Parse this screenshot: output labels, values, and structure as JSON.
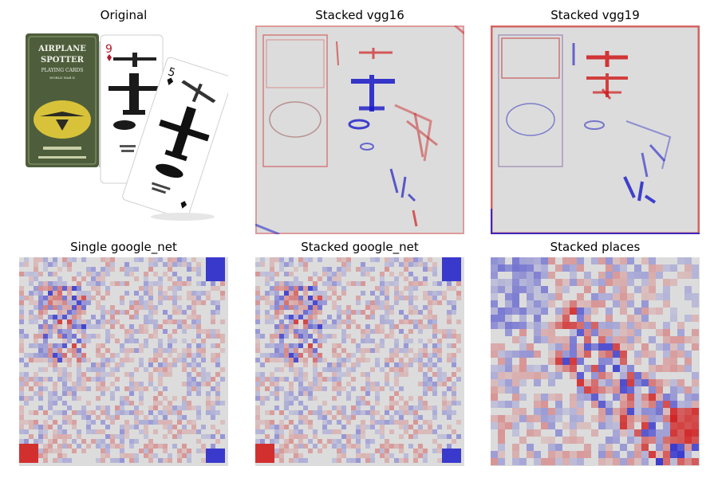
{
  "figure": {
    "panels": [
      {
        "title": "Original",
        "content": "photo of a deck box labeled AIRPLANE SPOTTER PLAYING CARDS with two playing cards showing airplane silhouettes"
      },
      {
        "title": "Stacked vgg16",
        "content": "saliency heatmap, red and blue edges on light gray"
      },
      {
        "title": "Stacked vgg19",
        "content": "saliency heatmap, red and blue edges on light gray"
      },
      {
        "title": "Single google_net",
        "content": "checkerboard-textured saliency heatmap"
      },
      {
        "title": "Stacked google_net",
        "content": "checkerboard-textured saliency heatmap"
      },
      {
        "title": "Stacked places",
        "content": "blocky grid saliency heatmap"
      }
    ],
    "photo": {
      "box_text": [
        "AIRPLANE",
        "SPOTTER",
        "PLAYING CARDS",
        "WORLD WAR II"
      ],
      "card_ranks": [
        "9",
        "5"
      ]
    },
    "colors": {
      "background": "#dcdcdc",
      "positive": "#d01010",
      "negative": "#1010c8",
      "box_green": "#4e5e3c"
    }
  }
}
